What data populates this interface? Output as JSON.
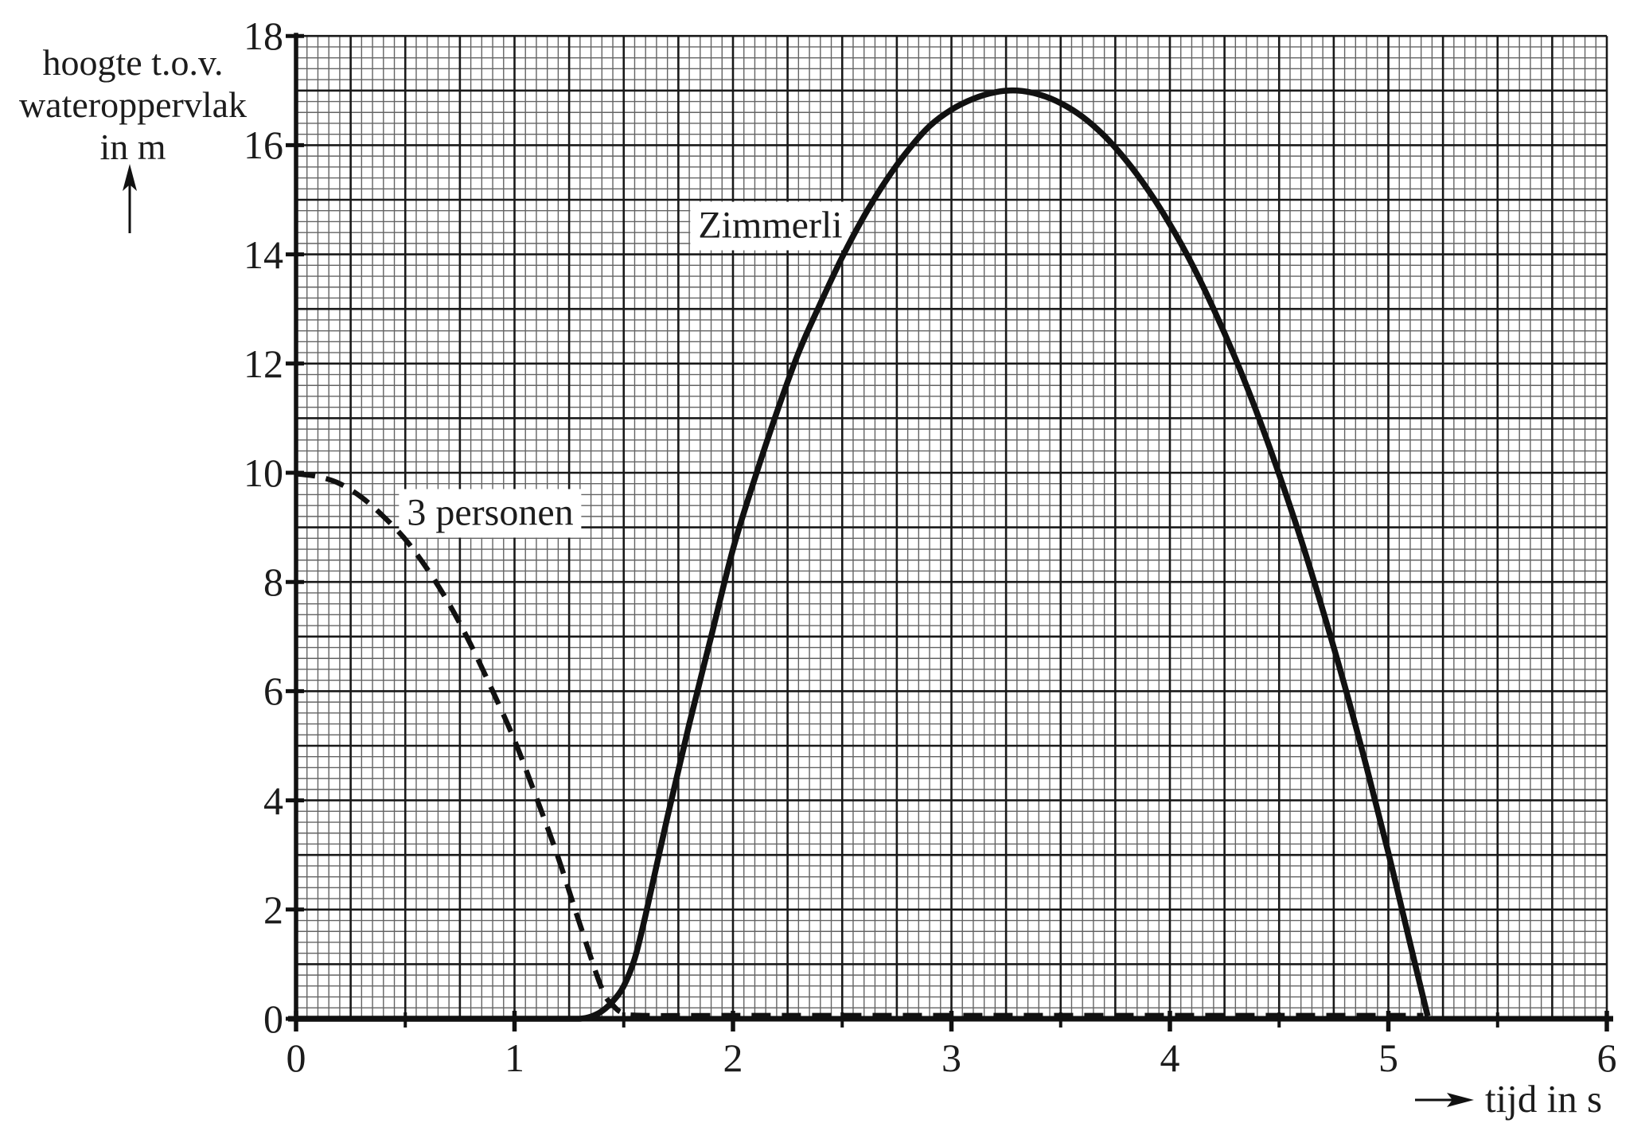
{
  "chart_data": {
    "type": "line",
    "title": "",
    "xlabel": "tijd in s",
    "ylabel_lines": [
      "hoogte t.o.v.",
      "wateroppervlak",
      "in m"
    ],
    "xlim": [
      0,
      6
    ],
    "ylim": [
      0,
      18
    ],
    "x_tick_labels": [
      "0",
      "1",
      "2",
      "3",
      "4",
      "5",
      "6"
    ],
    "y_tick_labels": [
      "0",
      "2",
      "4",
      "6",
      "8",
      "10",
      "12",
      "14",
      "16",
      "18"
    ],
    "grid": {
      "on": true,
      "x_minor_step_s": 0.05,
      "x_heavy_step_s": 0.25,
      "x_tick_step_s": 0.5,
      "y_minor_step_m": 0.2,
      "y_heavy_step_m": 1,
      "y_tick_step_m": 2
    },
    "series": [
      {
        "name": "Zimmerli",
        "style": "solid",
        "points": [
          [
            0,
            0
          ],
          [
            0.6,
            0
          ],
          [
            1.0,
            0
          ],
          [
            1.2,
            0
          ],
          [
            1.3,
            0
          ],
          [
            1.35,
            0.04
          ],
          [
            1.4,
            0.14
          ],
          [
            1.45,
            0.32
          ],
          [
            1.5,
            0.6
          ],
          [
            1.55,
            1.1
          ],
          [
            1.6,
            1.9
          ],
          [
            1.7,
            3.7
          ],
          [
            1.8,
            5.4
          ],
          [
            1.9,
            7.0
          ],
          [
            2.0,
            8.6
          ],
          [
            2.1,
            9.9
          ],
          [
            2.2,
            11.1
          ],
          [
            2.3,
            12.2
          ],
          [
            2.4,
            13.1
          ],
          [
            2.5,
            13.95
          ],
          [
            2.6,
            14.7
          ],
          [
            2.7,
            15.35
          ],
          [
            2.8,
            15.9
          ],
          [
            2.9,
            16.35
          ],
          [
            3.0,
            16.65
          ],
          [
            3.1,
            16.85
          ],
          [
            3.2,
            16.97
          ],
          [
            3.3,
            17.0
          ],
          [
            3.4,
            16.93
          ],
          [
            3.5,
            16.77
          ],
          [
            3.6,
            16.52
          ],
          [
            3.7,
            16.17
          ],
          [
            3.8,
            15.72
          ],
          [
            3.9,
            15.18
          ],
          [
            4.0,
            14.55
          ],
          [
            4.1,
            13.83
          ],
          [
            4.2,
            13.0
          ],
          [
            4.3,
            12.09
          ],
          [
            4.4,
            11.08
          ],
          [
            4.5,
            9.97
          ],
          [
            4.6,
            8.78
          ],
          [
            4.7,
            7.48
          ],
          [
            4.8,
            6.1
          ],
          [
            4.9,
            4.61
          ],
          [
            5.0,
            3.04
          ],
          [
            5.1,
            1.37
          ],
          [
            5.18,
            0.05
          ]
        ]
      },
      {
        "name": "3 personen",
        "style": "dashed",
        "points": [
          [
            0,
            9.98
          ],
          [
            0.1,
            9.93
          ],
          [
            0.2,
            9.8
          ],
          [
            0.3,
            9.55
          ],
          [
            0.4,
            9.2
          ],
          [
            0.5,
            8.78
          ],
          [
            0.6,
            8.24
          ],
          [
            0.7,
            7.6
          ],
          [
            0.8,
            6.85
          ],
          [
            0.9,
            6.0
          ],
          [
            1.0,
            5.1
          ],
          [
            1.1,
            4.05
          ],
          [
            1.2,
            2.95
          ],
          [
            1.3,
            1.72
          ],
          [
            1.4,
            0.55
          ],
          [
            1.45,
            0.25
          ],
          [
            1.5,
            0.1
          ],
          [
            1.6,
            0.06
          ],
          [
            2.0,
            0.06
          ],
          [
            2.5,
            0.06
          ],
          [
            3.0,
            0.06
          ],
          [
            3.5,
            0.06
          ],
          [
            4.0,
            0.06
          ],
          [
            4.5,
            0.06
          ],
          [
            5.0,
            0.06
          ],
          [
            5.16,
            0.06
          ]
        ]
      }
    ]
  },
  "colors": {
    "background": "#ffffff",
    "text": "#1c1c1c",
    "curve": "#111111",
    "axis": "#111111",
    "grid_minor": "#636363",
    "grid_heavy": "#191919"
  }
}
